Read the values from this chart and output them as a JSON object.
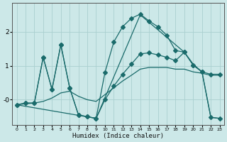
{
  "xlabel": "Humidex (Indice chaleur)",
  "bg_color": "#cce8e8",
  "grid_color": "#aacfcf",
  "line_color": "#1a6b6b",
  "xlim": [
    -0.5,
    23.5
  ],
  "ylim": [
    -0.75,
    2.85
  ],
  "xticks": [
    0,
    1,
    2,
    3,
    4,
    5,
    6,
    7,
    8,
    9,
    10,
    11,
    12,
    13,
    14,
    15,
    16,
    17,
    18,
    19,
    20,
    21,
    22,
    23
  ],
  "yticks": [
    0.0,
    1.0,
    2.0
  ],
  "ytick_labels": [
    "-0",
    "1",
    "2"
  ],
  "line1_x": [
    0,
    1,
    2,
    3,
    4,
    5,
    6,
    7,
    8,
    9,
    10,
    11,
    12,
    13,
    14,
    15,
    16,
    17,
    18,
    19,
    20,
    21,
    22,
    23
  ],
  "line1_y": [
    -0.15,
    -0.1,
    -0.1,
    1.25,
    0.3,
    1.62,
    0.35,
    -0.45,
    -0.5,
    -0.55,
    0.0,
    0.4,
    0.75,
    1.05,
    1.35,
    1.38,
    1.32,
    1.25,
    1.15,
    1.4,
    1.02,
    0.82,
    0.75,
    0.75
  ],
  "line2_x": [
    0,
    1,
    2,
    3,
    4,
    5,
    6,
    7,
    8,
    9,
    10,
    11,
    12,
    13,
    14,
    15,
    16,
    17,
    18,
    19,
    20,
    21,
    22,
    23
  ],
  "line2_y": [
    -0.15,
    -0.12,
    -0.1,
    -0.05,
    0.05,
    0.2,
    0.25,
    0.1,
    0.0,
    -0.05,
    0.15,
    0.35,
    0.55,
    0.72,
    0.9,
    0.95,
    0.95,
    0.95,
    0.9,
    0.9,
    0.82,
    0.78,
    0.72,
    0.72
  ],
  "line3_x": [
    0,
    9,
    14,
    19,
    20,
    21,
    22,
    23
  ],
  "line3_y": [
    -0.15,
    -0.55,
    2.5,
    1.4,
    1.05,
    0.82,
    -0.52,
    -0.55
  ],
  "line_main_x": [
    0,
    1,
    2,
    3,
    4,
    5,
    6,
    7,
    8,
    9,
    10,
    11,
    12,
    13,
    14,
    15,
    16,
    17,
    18,
    19,
    20,
    21,
    22,
    23
  ],
  "line_main_y": [
    -0.15,
    -0.1,
    -0.1,
    1.25,
    0.3,
    1.62,
    0.35,
    -0.45,
    -0.5,
    -0.55,
    0.8,
    1.7,
    2.15,
    2.4,
    2.52,
    2.32,
    2.15,
    1.9,
    1.45,
    1.4,
    1.02,
    0.82,
    -0.52,
    -0.55
  ],
  "marker_size": 3.0
}
